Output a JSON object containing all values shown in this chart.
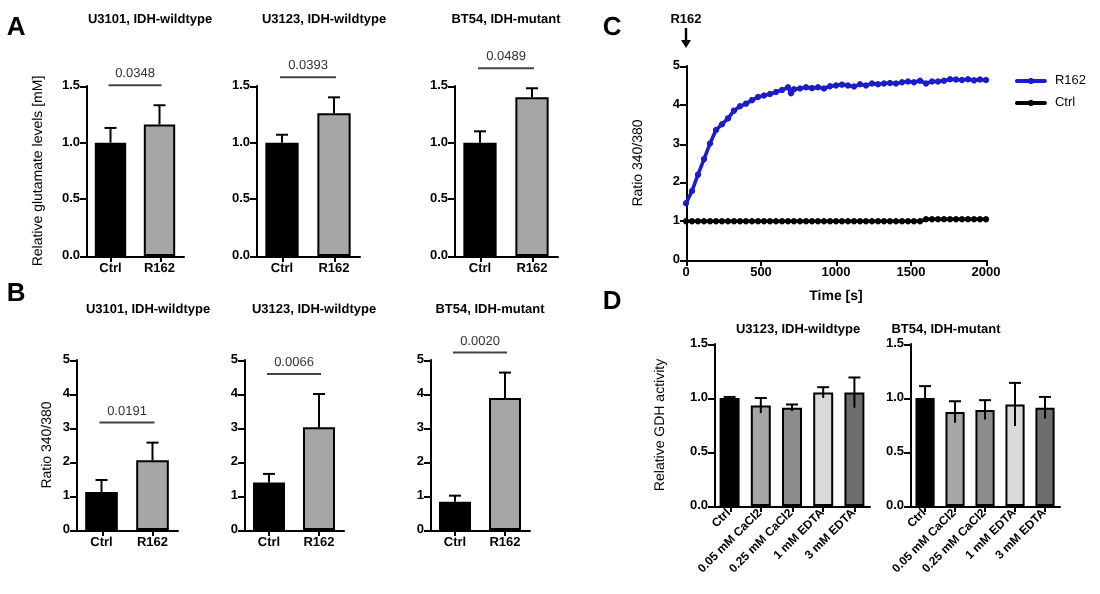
{
  "chart_data": [
    {
      "type": "bar",
      "title": "U3101, IDH-wildtype",
      "ylabel": "Relative glutamate levels [mM]",
      "categories": [
        "Ctrl",
        "R162"
      ],
      "values": [
        1.0,
        1.16
      ],
      "colors": [
        "#000000",
        "#a6a6a6"
      ],
      "errors": [
        [
          1.0,
          1.13
        ],
        [
          1.16,
          1.33
        ]
      ],
      "ylim": [
        0,
        1.5
      ],
      "yticks": [
        {
          "value": 0,
          "label": "0.0"
        },
        {
          "value": 0.5,
          "label": "0.5"
        },
        {
          "value": 1,
          "label": "1.0"
        },
        {
          "value": 1.5,
          "label": "1.5"
        }
      ],
      "annotations": [
        "A",
        "0.0348"
      ]
    },
    {
      "type": "bar",
      "title": "U3123, IDH-wildtype",
      "categories": [
        "Ctrl",
        "R162"
      ],
      "values": [
        1.0,
        1.26
      ],
      "colors": [
        "#000000",
        "#a6a6a6"
      ],
      "errors": [
        [
          1.0,
          1.07
        ],
        [
          1.26,
          1.4
        ]
      ],
      "ylim": [
        0,
        1.5
      ],
      "yticks": [
        {
          "value": 0,
          "label": "0.0"
        },
        {
          "value": 0.5,
          "label": "0.5"
        },
        {
          "value": 1,
          "label": "1.0"
        },
        {
          "value": 1.5,
          "label": "1.5"
        }
      ],
      "annotations": [
        "0.0393"
      ]
    },
    {
      "type": "bar",
      "title": "BT54, IDH-mutant",
      "categories": [
        "Ctrl",
        "R162"
      ],
      "values": [
        1.0,
        1.4
      ],
      "colors": [
        "#000000",
        "#a6a6a6"
      ],
      "errors": [
        [
          1.0,
          1.1
        ],
        [
          1.4,
          1.48
        ]
      ],
      "ylim": [
        0,
        1.5
      ],
      "yticks": [
        {
          "value": 0,
          "label": "0.0"
        },
        {
          "value": 0.5,
          "label": "0.5"
        },
        {
          "value": 1,
          "label": "1.0"
        },
        {
          "value": 1.5,
          "label": "1.5"
        }
      ],
      "annotations": [
        "0.0489"
      ]
    },
    {
      "type": "bar",
      "title": "U3101, IDH-wildtype",
      "ylabel": "Ratio 340/380",
      "categories": [
        "Ctrl",
        "R162"
      ],
      "values": [
        1.12,
        2.05
      ],
      "colors": [
        "#000000",
        "#a6a6a6"
      ],
      "errors": [
        [
          1.12,
          1.47
        ],
        [
          2.05,
          2.57
        ]
      ],
      "ylim": [
        0,
        5
      ],
      "yticks": [
        0,
        1,
        2,
        3,
        4,
        5
      ],
      "annotations": [
        "B",
        "0.0191"
      ]
    },
    {
      "type": "bar",
      "title": "U3123, IDH-wildtype",
      "categories": [
        "Ctrl",
        "R162"
      ],
      "values": [
        1.4,
        3.02
      ],
      "colors": [
        "#000000",
        "#a6a6a6"
      ],
      "errors": [
        [
          1.4,
          1.65
        ],
        [
          3.02,
          4.0
        ]
      ],
      "ylim": [
        0,
        5
      ],
      "yticks": [
        0,
        1,
        2,
        3,
        4,
        5
      ],
      "annotations": [
        "0.0066"
      ]
    },
    {
      "type": "bar",
      "title": "BT54, IDH-mutant",
      "categories": [
        "Ctrl",
        "R162"
      ],
      "values": [
        0.83,
        3.88
      ],
      "colors": [
        "#000000",
        "#a6a6a6"
      ],
      "errors": [
        [
          0.83,
          1.01
        ],
        [
          3.88,
          4.63
        ]
      ],
      "ylim": [
        0,
        5
      ],
      "yticks": [
        0,
        1,
        2,
        3,
        4,
        5
      ],
      "annotations": [
        "0.0020"
      ]
    },
    {
      "type": "line",
      "xlabel": "Time [s]",
      "ylabel": "Ratio 340/380",
      "marker": "circle",
      "line_style": "solid",
      "legend": "right",
      "xlim": [
        0,
        2000
      ],
      "xticks": [
        0,
        500,
        1000,
        1500,
        2000
      ],
      "ylim": [
        0,
        5
      ],
      "yticks": [
        0,
        1,
        2,
        3,
        4,
        5
      ],
      "annotations": [
        "C",
        "R162"
      ],
      "series": [
        {
          "name": "R162",
          "color": "#1c1cc8",
          "x": [
            0,
            40,
            80,
            120,
            160,
            200,
            240,
            280,
            320,
            360,
            400,
            440,
            480,
            520,
            560,
            600,
            640,
            680,
            700,
            720,
            760,
            800,
            840,
            880,
            920,
            960,
            1000,
            1040,
            1080,
            1120,
            1160,
            1200,
            1240,
            1280,
            1320,
            1360,
            1400,
            1440,
            1480,
            1520,
            1560,
            1600,
            1640,
            1680,
            1720,
            1760,
            1800,
            1840,
            1880,
            1920,
            1960,
            2000
          ],
          "values": [
            1.46,
            1.78,
            2.2,
            2.6,
            3.0,
            3.35,
            3.5,
            3.65,
            3.85,
            3.96,
            4.03,
            4.12,
            4.2,
            4.24,
            4.28,
            4.33,
            4.38,
            4.45,
            4.3,
            4.4,
            4.42,
            4.45,
            4.43,
            4.45,
            4.42,
            4.48,
            4.5,
            4.52,
            4.5,
            4.47,
            4.53,
            4.5,
            4.55,
            4.53,
            4.55,
            4.56,
            4.55,
            4.58,
            4.6,
            4.58,
            4.62,
            4.55,
            4.6,
            4.6,
            4.62,
            4.66,
            4.65,
            4.64,
            4.66,
            4.63,
            4.65,
            4.64
          ]
        },
        {
          "name": "Ctrl",
          "color": "#000000",
          "x": [
            0,
            40,
            80,
            120,
            160,
            200,
            240,
            280,
            320,
            360,
            400,
            440,
            480,
            520,
            560,
            600,
            640,
            680,
            720,
            760,
            800,
            840,
            880,
            920,
            960,
            1000,
            1040,
            1080,
            1120,
            1160,
            1200,
            1240,
            1280,
            1320,
            1360,
            1400,
            1440,
            1480,
            1520,
            1560,
            1600,
            1640,
            1680,
            1720,
            1760,
            1800,
            1840,
            1880,
            1920,
            1960,
            2000
          ],
          "values": [
            1.0,
            1.0,
            1.0,
            1.0,
            1.0,
            1.0,
            1.0,
            1.0,
            1.0,
            1.0,
            1.0,
            1.0,
            1.0,
            1.0,
            1.0,
            1.0,
            1.0,
            1.0,
            1.0,
            1.0,
            1.0,
            1.0,
            1.0,
            1.0,
            1.0,
            1.0,
            1.0,
            1.0,
            1.0,
            1.0,
            1.0,
            1.0,
            1.0,
            1.0,
            1.0,
            1.0,
            1.0,
            1.0,
            1.0,
            1.0,
            1.05,
            1.05,
            1.05,
            1.05,
            1.05,
            1.05,
            1.05,
            1.05,
            1.05,
            1.05,
            1.05
          ]
        }
      ]
    },
    {
      "type": "bar",
      "title": "U3123, IDH-wildtype",
      "ylabel": "Relative GDH activity",
      "categories": [
        "Ctrl",
        "0.05 mM CaCl2",
        "0.25 mM CaCl2",
        "1 mM EDTA",
        "3 mM EDTA"
      ],
      "values": [
        1.0,
        0.93,
        0.91,
        1.05,
        1.05
      ],
      "colors": [
        "#000000",
        "#a6a6a6",
        "#8c8c8c",
        "#d9d9d9",
        "#6e6e6e"
      ],
      "errors": [
        0.01,
        0.07,
        0.03,
        0.05,
        0.14
      ],
      "ylim": [
        0,
        1.5
      ],
      "yticks": [
        {
          "value": 0,
          "label": "0.0"
        },
        {
          "value": 0.5,
          "label": "0.5"
        },
        {
          "value": 1,
          "label": "1.0"
        },
        {
          "value": 1.5,
          "label": "1.5"
        }
      ],
      "annotations": [
        "D"
      ]
    },
    {
      "type": "bar",
      "title": "BT54, IDH-mutant",
      "categories": [
        "Ctrl",
        "0.05 mM CaCl2",
        "0.25 mM CaCl2",
        "1 mM EDTA",
        "3 mM EDTA"
      ],
      "values": [
        1.0,
        0.87,
        0.89,
        0.94,
        0.91
      ],
      "colors": [
        "#000000",
        "#a6a6a6",
        "#8c8c8c",
        "#d9d9d9",
        "#6e6e6e"
      ],
      "errors": [
        0.11,
        0.1,
        0.09,
        0.2,
        0.1
      ],
      "ylim": [
        0,
        1.5
      ],
      "yticks": [
        {
          "value": 0,
          "label": "0.0"
        },
        {
          "value": 0.5,
          "label": "0.5"
        },
        {
          "value": 1,
          "label": "1.0"
        },
        {
          "value": 1.5,
          "label": "1.5"
        }
      ]
    }
  ]
}
